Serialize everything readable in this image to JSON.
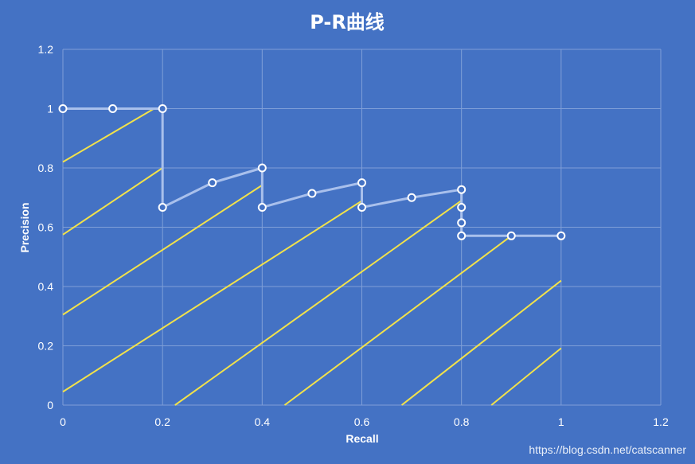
{
  "chart_data": {
    "type": "line",
    "title": "P-R曲线",
    "xlabel": "Recall",
    "ylabel": "Precision",
    "xlim": [
      0,
      1.2
    ],
    "ylim": [
      0,
      1.2
    ],
    "xticks": [
      "0",
      "0.2",
      "0.4",
      "0.6",
      "0.8",
      "1",
      "1.2"
    ],
    "yticks": [
      "0",
      "0.2",
      "0.4",
      "0.6",
      "0.8",
      "1",
      "1.2"
    ],
    "grid": true,
    "colors": {
      "background": "#4472c4",
      "grid": "#7f9fd8",
      "pr_line": "#a9c0ec",
      "marker_fill": "#4472c4",
      "marker_stroke": "#ffffff",
      "guide_lines": "#f2e24a"
    },
    "series": [
      {
        "x": [
          0,
          0.1,
          0.2,
          0.2,
          0.3,
          0.4,
          0.4,
          0.5,
          0.6,
          0.6,
          0.7,
          0.8,
          0.8,
          0.8,
          0.8,
          0.9,
          1.0
        ],
        "y": [
          1.0,
          1.0,
          1.0,
          0.667,
          0.75,
          0.8,
          0.667,
          0.714,
          0.75,
          0.667,
          0.7,
          0.727,
          0.667,
          0.615,
          0.571,
          0.571,
          0.571
        ]
      }
    ],
    "guide_lines": [
      {
        "x": [
          0,
          0.183
        ],
        "y": [
          0.82,
          1.0
        ]
      },
      {
        "x": [
          0,
          0.2
        ],
        "y": [
          0.575,
          0.8
        ]
      },
      {
        "x": [
          0,
          0.4
        ],
        "y": [
          0.305,
          0.742
        ]
      },
      {
        "x": [
          0,
          0.6
        ],
        "y": [
          0.045,
          0.689
        ]
      },
      {
        "x": [
          0.225,
          0.8
        ],
        "y": [
          0,
          0.69
        ]
      },
      {
        "x": [
          0.445,
          0.9
        ],
        "y": [
          0,
          0.571
        ]
      },
      {
        "x": [
          0.68,
          1.0
        ],
        "y": [
          0,
          0.42
        ]
      },
      {
        "x": [
          0.86,
          1.0
        ],
        "y": [
          0,
          0.192
        ]
      }
    ]
  },
  "watermark": "https://blog.csdn.net/catscanner"
}
